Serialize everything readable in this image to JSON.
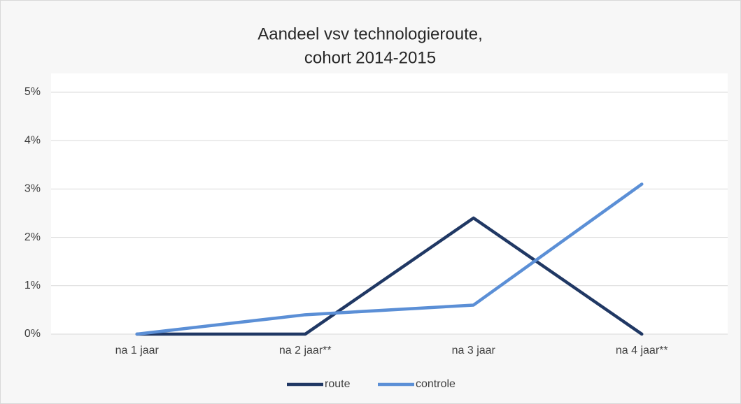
{
  "chart_data": {
    "type": "line",
    "title": [
      "Aandeel vsv technologieroute,",
      "cohort 2014-2015"
    ],
    "categories": [
      "na 1 jaar",
      "na 2 jaar**",
      "na 3 jaar",
      "na 4 jaar**"
    ],
    "series": [
      {
        "name": "route",
        "color": "#203864",
        "values": [
          0,
          0,
          2.4,
          0
        ]
      },
      {
        "name": "controle",
        "color": "#5b8fd6",
        "values": [
          0,
          0.4,
          0.6,
          3.1
        ]
      }
    ],
    "ylim": [
      0,
      5
    ],
    "yticks": [
      {
        "value": 0,
        "label": "0%"
      },
      {
        "value": 1,
        "label": "1%"
      },
      {
        "value": 2,
        "label": "2%"
      },
      {
        "value": 3,
        "label": "3%"
      },
      {
        "value": 4,
        "label": "4%"
      },
      {
        "value": 5,
        "label": "5%"
      }
    ],
    "grid": true,
    "legend": "bottom"
  }
}
